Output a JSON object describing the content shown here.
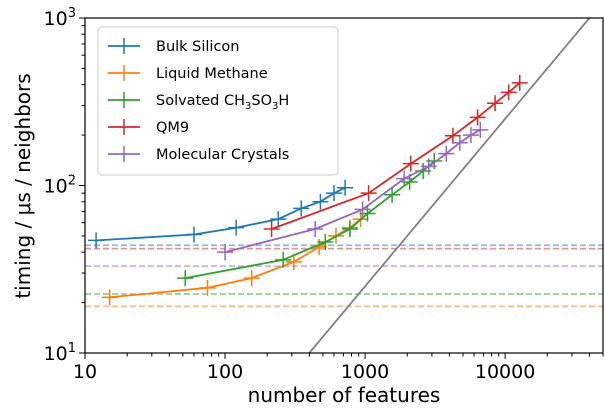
{
  "chart_data": {
    "type": "line",
    "xlabel": "number of features",
    "ylabel": "timing / μs / neighbors",
    "xscale": "log",
    "yscale": "log",
    "xlim": [
      10,
      50000
    ],
    "ylim": [
      10,
      1000
    ],
    "x_ticks": [
      {
        "value": 10,
        "label": "10"
      },
      {
        "value": 100,
        "label": "100"
      },
      {
        "value": 1000,
        "label": "1000"
      },
      {
        "value": 10000,
        "label": "10000"
      }
    ],
    "y_ticks": [
      {
        "value": 10,
        "label": "10",
        "sup": "1"
      },
      {
        "value": 100,
        "label": "10",
        "sup": "2"
      },
      {
        "value": 1000,
        "label": "10",
        "sup": "3"
      }
    ],
    "grid": false,
    "legend_position": "top-left",
    "series": [
      {
        "name": "Bulk Silicon",
        "legend_label": "Bulk Silicon",
        "color": "#1f77b4",
        "baseline": 44,
        "x": [
          12,
          60,
          120,
          240,
          350,
          480,
          600,
          720
        ],
        "y": [
          47,
          51,
          56,
          63,
          73,
          80,
          90,
          97
        ]
      },
      {
        "name": "Liquid Methane",
        "legend_label": "Liquid Methane",
        "color": "#ff7f0e",
        "baseline": 19,
        "x": [
          15,
          75,
          155,
          310,
          470,
          620,
          780,
          930
        ],
        "y": [
          21.5,
          24.5,
          28,
          35,
          43,
          50,
          56,
          63
        ]
      },
      {
        "name": "Solvated CH3SO3H",
        "legend_label": "Solvated CH",
        "legend_sub1": "3",
        "legend_mid": "SO",
        "legend_sub2": "3",
        "legend_end": "H",
        "color": "#2ca02c",
        "baseline": 22.5,
        "x": [
          52,
          260,
          520,
          780,
          1040,
          1560,
          2080,
          2600,
          3120
        ],
        "y": [
          28,
          36,
          46,
          55,
          68,
          88,
          105,
          122,
          140
        ]
      },
      {
        "name": "QM9",
        "legend_label": "QM9",
        "color": "#d62728",
        "baseline": 42,
        "x": [
          215,
          1060,
          2120,
          4240,
          6360,
          8480,
          10600,
          12720
        ],
        "y": [
          55,
          90,
          135,
          198,
          255,
          310,
          360,
          410
        ]
      },
      {
        "name": "Molecular Crystals",
        "legend_label": "Molecular Crystals",
        "color": "#9467bd",
        "baseline": 33,
        "x": [
          100,
          440,
          960,
          1900,
          2850,
          3800,
          4750,
          5700,
          6650
        ],
        "y": [
          40,
          55,
          72,
          110,
          130,
          155,
          180,
          200,
          215
        ]
      }
    ],
    "reference_line": {
      "color": "#808080",
      "slope": 1,
      "points": [
        [
          400,
          10
        ],
        [
          40000,
          1000
        ]
      ]
    }
  }
}
